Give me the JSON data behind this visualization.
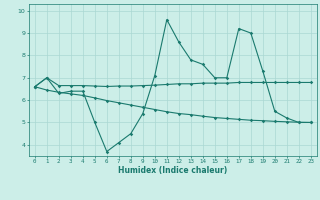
{
  "xlabel": "Humidex (Indice chaleur)",
  "bg_color": "#cceee8",
  "line_color": "#1a7a6e",
  "grid_color": "#aad8d3",
  "xlim": [
    -0.5,
    23.5
  ],
  "ylim": [
    3.5,
    10.3
  ],
  "xticks": [
    0,
    1,
    2,
    3,
    4,
    5,
    6,
    7,
    8,
    9,
    10,
    11,
    12,
    13,
    14,
    15,
    16,
    17,
    18,
    19,
    20,
    21,
    22,
    23
  ],
  "yticks": [
    4,
    5,
    6,
    7,
    8,
    9,
    10
  ],
  "series1_x": [
    0,
    1,
    2,
    3,
    4,
    5,
    6,
    7,
    8,
    9,
    10,
    11,
    12,
    13,
    14,
    15,
    16,
    17,
    18,
    19,
    20,
    21,
    22,
    23
  ],
  "series1_y": [
    6.6,
    7.0,
    6.3,
    6.4,
    6.4,
    5.0,
    3.7,
    4.1,
    4.5,
    5.4,
    7.1,
    9.6,
    8.6,
    7.8,
    7.6,
    7.0,
    7.0,
    9.2,
    9.0,
    7.3,
    5.5,
    5.2,
    5.0,
    5.0
  ],
  "series2_x": [
    0,
    1,
    2,
    3,
    4,
    5,
    6,
    7,
    8,
    9,
    10,
    11,
    12,
    13,
    14,
    15,
    16,
    17,
    18,
    19,
    20,
    21,
    22,
    23
  ],
  "series2_y": [
    6.6,
    7.0,
    6.65,
    6.65,
    6.65,
    6.63,
    6.61,
    6.63,
    6.63,
    6.65,
    6.67,
    6.7,
    6.73,
    6.73,
    6.76,
    6.76,
    6.76,
    6.79,
    6.79,
    6.79,
    6.79,
    6.79,
    6.79,
    6.79
  ],
  "series3_x": [
    0,
    1,
    2,
    3,
    4,
    5,
    6,
    7,
    8,
    9,
    10,
    11,
    12,
    13,
    14,
    15,
    16,
    17,
    18,
    19,
    20,
    21,
    22,
    23
  ],
  "series3_y": [
    6.6,
    6.45,
    6.35,
    6.28,
    6.21,
    6.1,
    5.98,
    5.88,
    5.78,
    5.68,
    5.58,
    5.48,
    5.4,
    5.35,
    5.28,
    5.22,
    5.18,
    5.14,
    5.1,
    5.08,
    5.05,
    5.03,
    5.01,
    5.0
  ]
}
